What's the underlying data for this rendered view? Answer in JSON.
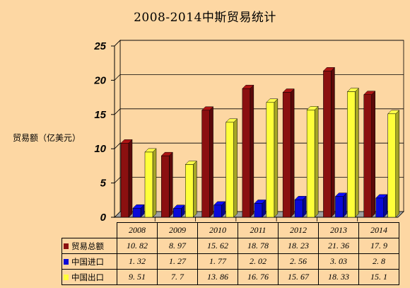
{
  "chart_data": {
    "type": "bar",
    "title": "2008-2014中斯贸易统计",
    "ylabel": "贸易额（亿美元）",
    "xlabel": "",
    "ylim": [
      0,
      25
    ],
    "yticks": [
      0,
      5,
      10,
      15,
      20,
      25
    ],
    "categories": [
      "2008",
      "2009",
      "2010",
      "2011",
      "2012",
      "2013",
      "2014"
    ],
    "series": [
      {
        "name": "贸易总额",
        "color": "#8b1010",
        "values": [
          10.82,
          8.97,
          15.62,
          18.78,
          18.23,
          21.36,
          17.9
        ]
      },
      {
        "name": "中国进口",
        "color": "#0a0ad8",
        "values": [
          1.32,
          1.27,
          1.77,
          2.02,
          2.56,
          3.03,
          2.8
        ]
      },
      {
        "name": "中国出口",
        "color": "#ffff3a",
        "values": [
          9.51,
          7.7,
          13.86,
          16.76,
          15.67,
          18.33,
          15.1
        ]
      }
    ],
    "value_labels": [
      [
        "10. 82",
        "8. 97",
        "15. 62",
        "18. 78",
        "18. 23",
        "21. 36",
        "17. 9"
      ],
      [
        "1. 32",
        "1. 27",
        "1. 77",
        "2. 02",
        "2. 56",
        "3. 03",
        "2. 8"
      ],
      [
        "9. 51",
        "7. 7",
        "13. 86",
        "16. 76",
        "15. 67",
        "18. 33",
        "15. 1"
      ]
    ],
    "grid": true,
    "legend": "data-table-below"
  }
}
